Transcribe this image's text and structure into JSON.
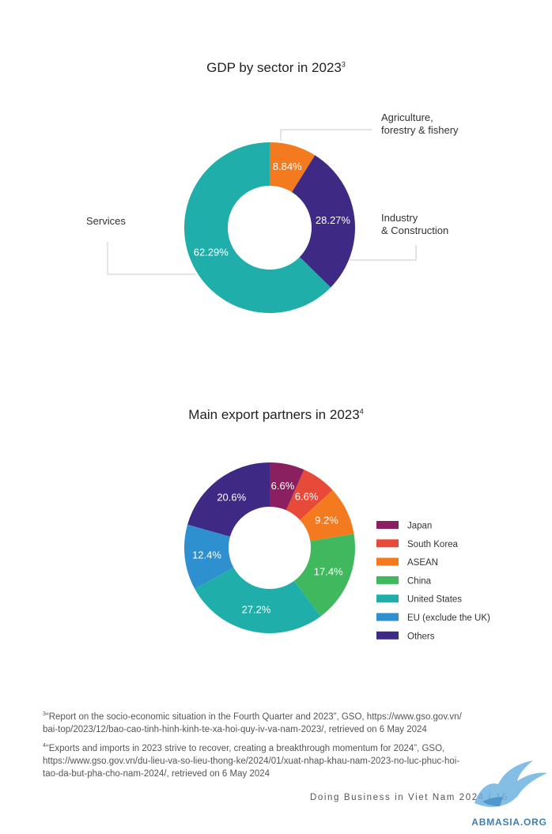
{
  "chart_data": [
    {
      "type": "pie",
      "title": "GDP by sector in 2023",
      "title_sup": "3",
      "hole": true,
      "legend": "callouts",
      "slices": [
        {
          "name": "Agriculture, forestry & fishery",
          "label_lines": [
            "Agriculture,",
            "forestry & fishery"
          ],
          "value": 8.84,
          "label": "8.84%",
          "color": "#f47a20"
        },
        {
          "name": "Industry & Construction",
          "label_lines": [
            "Industry",
            "& Construction"
          ],
          "value": 28.27,
          "label": "28.27%",
          "color": "#3e2a84"
        },
        {
          "name": "Services",
          "label_lines": [
            "Services"
          ],
          "value": 62.29,
          "label": "62.29%",
          "color": "#20aeaa"
        }
      ]
    },
    {
      "type": "pie",
      "title": "Main export partners in 2023",
      "title_sup": "4",
      "hole": true,
      "legend": "right",
      "slices": [
        {
          "name": "Japan",
          "value": 6.6,
          "label": "6.6%",
          "color": "#8a2060"
        },
        {
          "name": "South Korea",
          "value": 6.6,
          "label": "6.6%",
          "color": "#e84a3a"
        },
        {
          "name": "ASEAN",
          "value": 9.2,
          "label": "9.2%",
          "color": "#f47a20"
        },
        {
          "name": "China",
          "value": 17.4,
          "label": "17.4%",
          "color": "#3fb85e"
        },
        {
          "name": "United States",
          "value": 27.2,
          "label": "27.2%",
          "color": "#20aeaa"
        },
        {
          "name": "EU (exclude the UK)",
          "value": 12.4,
          "label": "12.4%",
          "color": "#2f90cf"
        },
        {
          "name": "Others",
          "value": 20.6,
          "label": "20.6%",
          "color": "#3e2a84"
        }
      ]
    }
  ],
  "footnotes": [
    {
      "num": "3",
      "lines": [
        "“Report on the socio-economic situation in the Fourth Quarter and 2023”, GSO, https://www.gso.gov.vn/",
        "bai-top/2023/12/bao-cao-tinh-hinh-kinh-te-xa-hoi-quy-iv-va-nam-2023/, retrieved on 6 May 2024"
      ]
    },
    {
      "num": "4",
      "lines": [
        "“Exports and imports in 2023 strive to recover, creating a breakthrough momentum for 2024”, GSO,",
        "https://www.gso.gov.vn/du-lieu-va-so-lieu-thong-ke/2024/01/xuat-nhap-khau-nam-2023-no-luc-phuc-hoi-",
        "tao-da-but-pha-cho-nam-2024/, retrieved on 6 May 2024"
      ]
    }
  ],
  "footer": {
    "text": "Doing Business in Viet Nam 2024 | 15"
  },
  "watermark": {
    "text": "ABMASIA.ORG",
    "icon": "bird-logo-icon",
    "color": "#5aa7d8"
  }
}
